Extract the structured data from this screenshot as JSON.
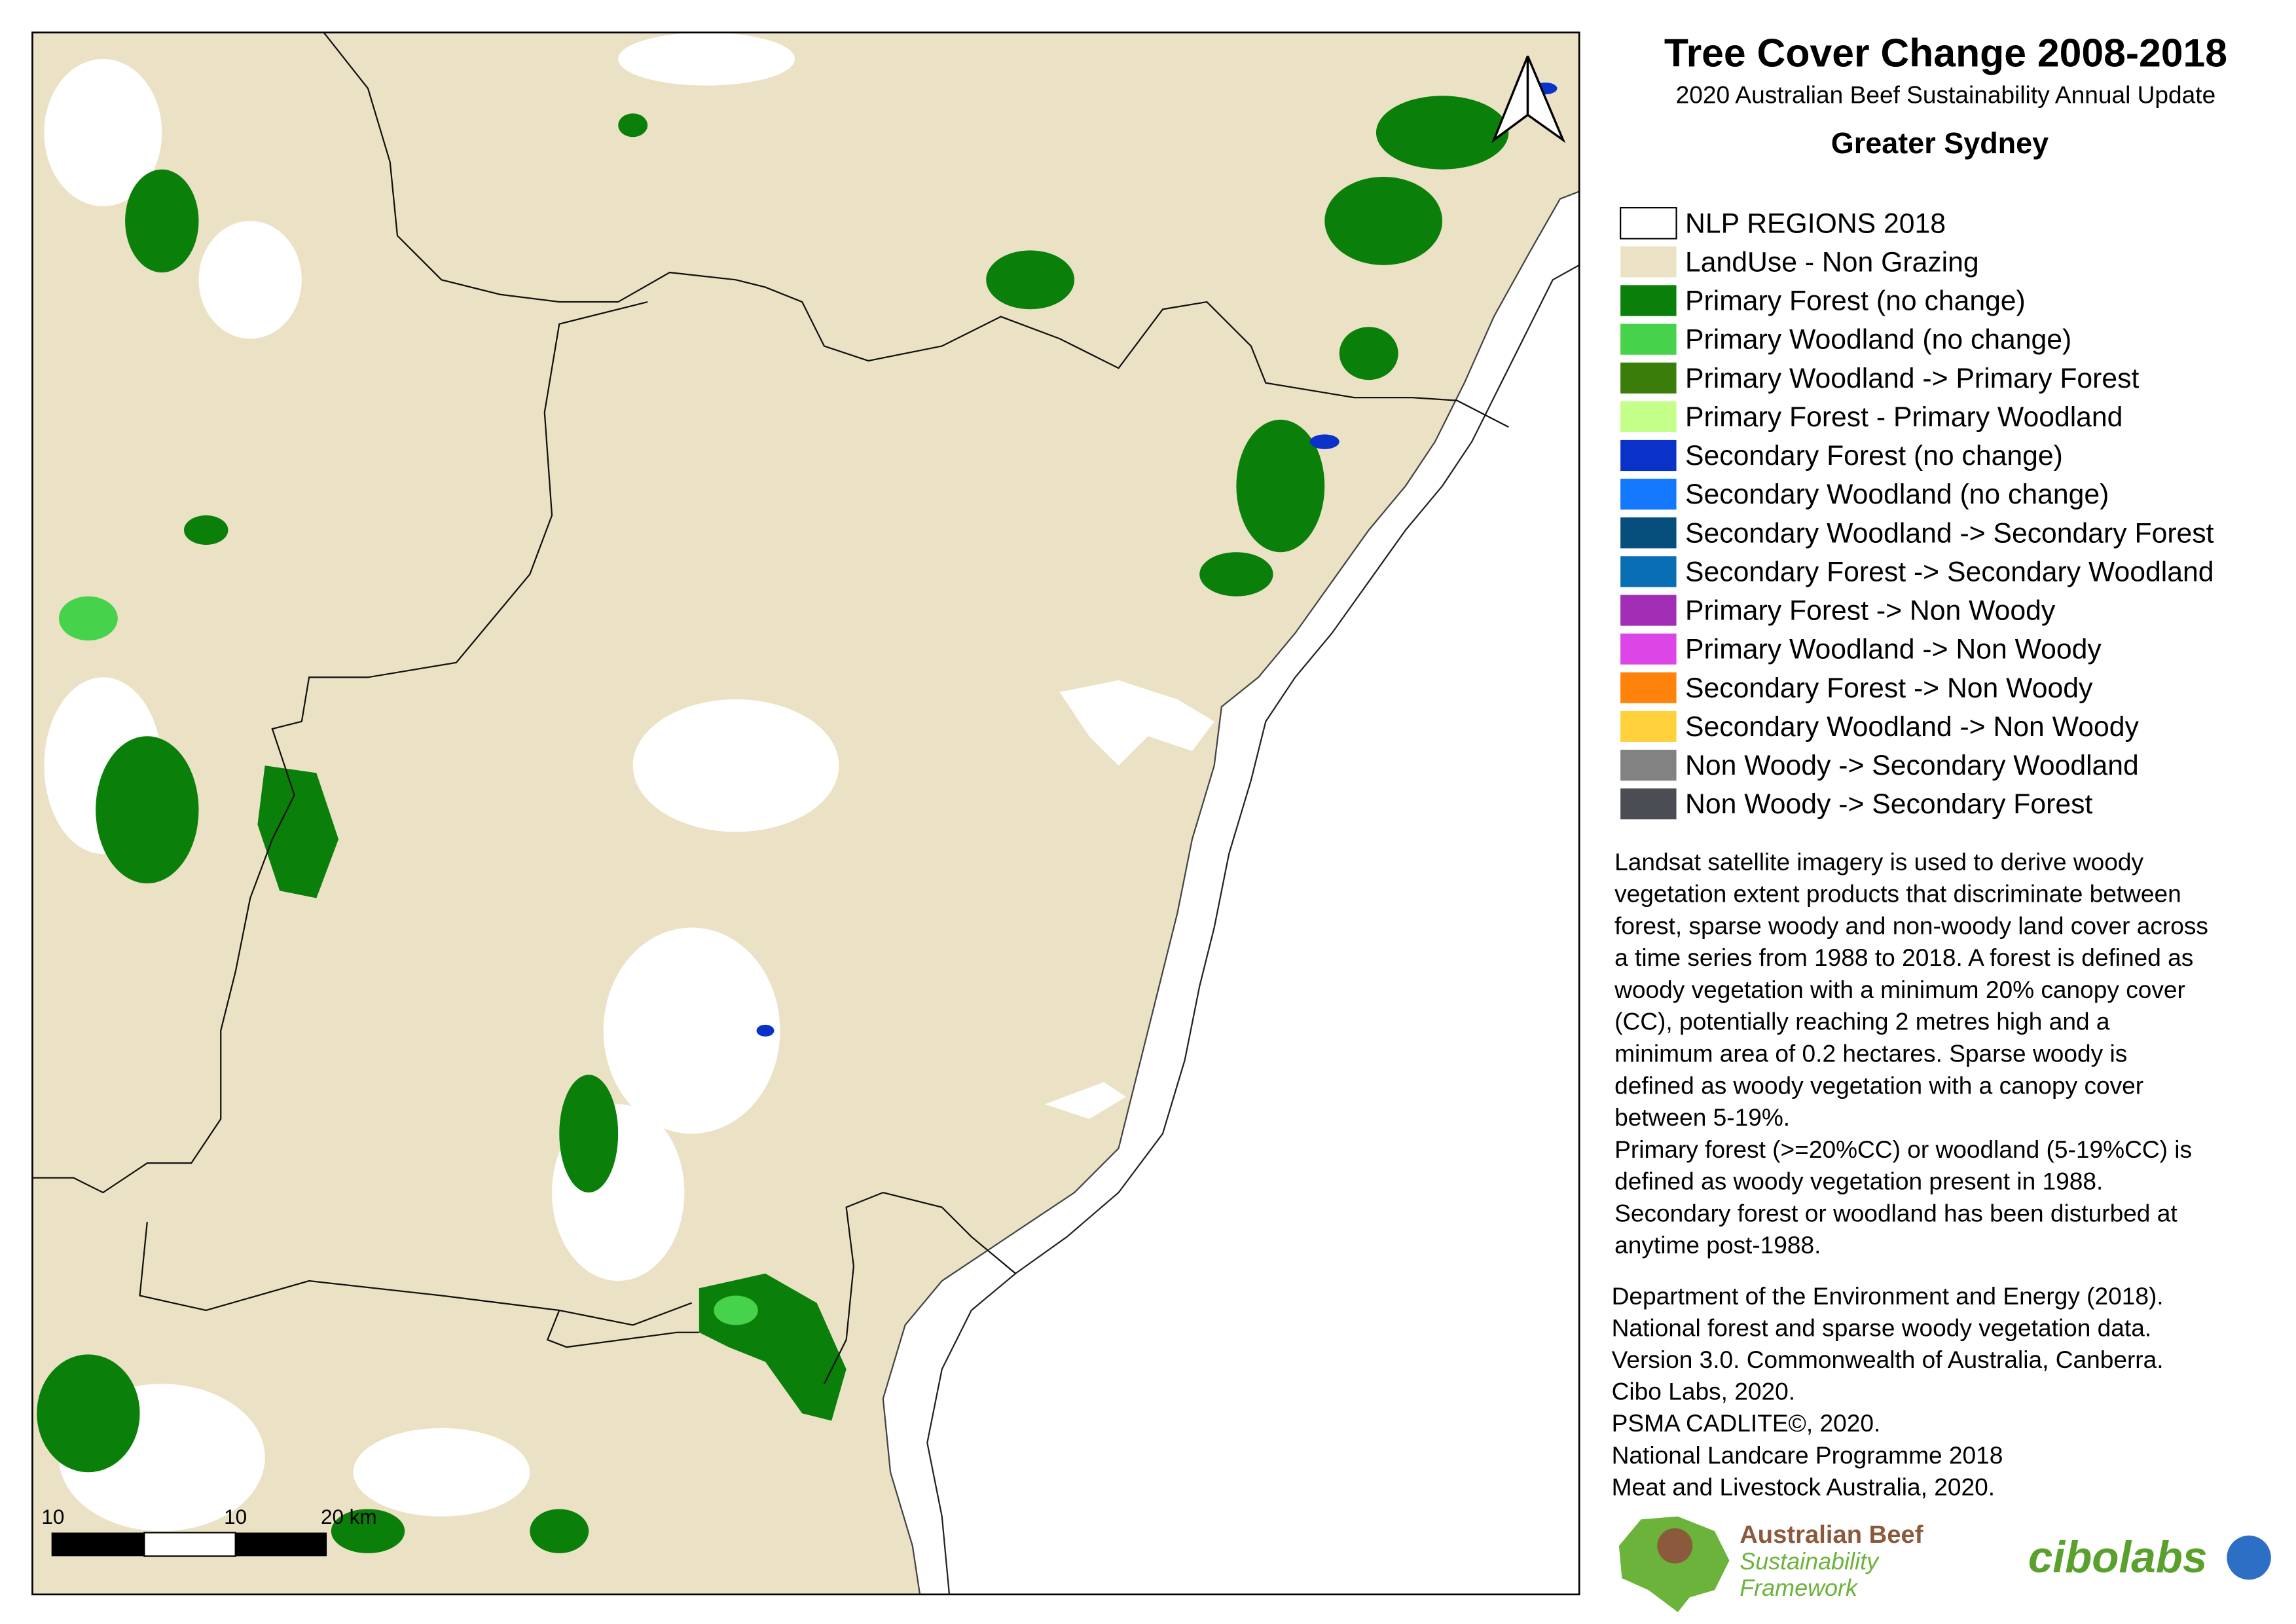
{
  "header": {
    "title": "Tree Cover Change 2008-2018",
    "subtitle": "2020 Australian Beef Sustainability Annual Update",
    "region": "Greater Sydney"
  },
  "legend": {
    "items": [
      {
        "label": "NLP REGIONS 2018",
        "color": "#ffffff"
      },
      {
        "label": "LandUse - Non Grazing",
        "color": "#ebe2c5"
      },
      {
        "label": "Primary Forest (no change)",
        "color": "#0a7f0a"
      },
      {
        "label": "Primary Woodland (no change)",
        "color": "#46d24a"
      },
      {
        "label": "Primary Woodland -> Primary Forest",
        "color": "#3a7d0a"
      },
      {
        "label": "Primary Forest - Primary Woodland",
        "color": "#c4ff8a"
      },
      {
        "label": "Secondary Forest (no change)",
        "color": "#0a32c8"
      },
      {
        "label": "Secondary Woodland (no change)",
        "color": "#1478ff"
      },
      {
        "label": "Secondary Woodland -> Secondary Forest",
        "color": "#064e7c"
      },
      {
        "label": "Secondary Forest -> Secondary Woodland",
        "color": "#0a6eb4"
      },
      {
        "label": "Primary Forest -> Non Woody",
        "color": "#a02db4"
      },
      {
        "label": "Primary Woodland -> Non Woody",
        "color": "#dc46e6"
      },
      {
        "label": "Secondary Forest -> Non Woody",
        "color": "#ff820a"
      },
      {
        "label": "Secondary Woodland -> Non Woody",
        "color": "#ffd23c"
      },
      {
        "label": "Non Woody -> Secondary Woodland",
        "color": "#828282"
      },
      {
        "label": "Non Woody -> Secondary Forest",
        "color": "#4a4e54"
      }
    ]
  },
  "description": [
    "Landsat satellite imagery is used to derive woody",
    "vegetation extent products that discriminate between",
    "forest, sparse woody and non-woody land cover across",
    "a time series from 1988 to 2018. A forest is defined as",
    "woody vegetation with a minimum 20% canopy cover",
    "(CC), potentially reaching 2 metres high and a",
    "minimum area of 0.2 hectares. Sparse woody is",
    "defined as woody vegetation with a canopy cover",
    "between 5-19%.",
    "Primary forest (>=20%CC) or woodland (5-19%CC) is",
    "defined as woody vegetation present in 1988.",
    "Secondary forest or woodland has been disturbed at",
    "anytime post-1988."
  ],
  "references": [
    "Department of the Environment and Energy (2018).",
    "National forest and sparse woody vegetation data.",
    "Version 3.0. Commonwealth of Australia, Canberra.",
    "Cibo Labs, 2020.",
    "PSMA CADLITE©, 2020.",
    "National Landcare Programme 2018",
    "Meat and Livestock Australia, 2020."
  ],
  "scale_bar": {
    "labels": [
      "10",
      "10",
      "20 km"
    ]
  },
  "logos": {
    "abs_lines": [
      "Australian Beef",
      "Sustainability",
      "Framework"
    ],
    "cibolabs": "cibolabs"
  }
}
